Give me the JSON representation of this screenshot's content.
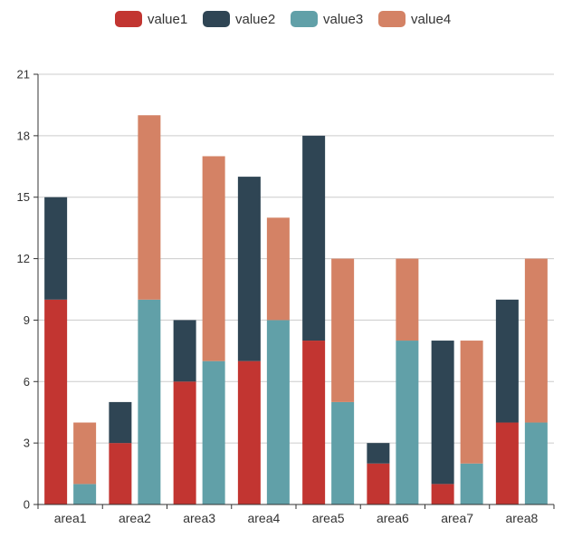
{
  "chart_data": {
    "type": "bar",
    "stacked": true,
    "categories": [
      "area1",
      "area2",
      "area3",
      "area4",
      "area5",
      "area6",
      "area7",
      "area8"
    ],
    "stacks": [
      {
        "stack": "A",
        "series": [
          "value1",
          "value2"
        ]
      },
      {
        "stack": "B",
        "series": [
          "value3",
          "value4"
        ]
      }
    ],
    "series": [
      {
        "name": "value1",
        "stack": "A",
        "color": "#c23531",
        "values": [
          10,
          3,
          6,
          7,
          8,
          2,
          1,
          4
        ]
      },
      {
        "name": "value2",
        "stack": "A",
        "color": "#2f4554",
        "values": [
          5,
          2,
          3,
          9,
          10,
          1,
          7,
          6
        ]
      },
      {
        "name": "value3",
        "stack": "B",
        "color": "#61a0a8",
        "values": [
          1,
          10,
          7,
          9,
          5,
          8,
          2,
          4
        ]
      },
      {
        "name": "value4",
        "stack": "B",
        "color": "#d48265",
        "values": [
          3,
          9,
          10,
          5,
          7,
          4,
          6,
          8
        ]
      }
    ],
    "ylim": [
      0,
      21
    ],
    "yticks": [
      "0",
      "3",
      "6",
      "9",
      "12",
      "15",
      "18",
      "21"
    ],
    "grid": true,
    "legend_position": "top-center",
    "title": "",
    "xlabel": "",
    "ylabel": ""
  },
  "colors": {
    "axis": "#333333",
    "gridline": "#cccccc",
    "label": "#333333"
  }
}
